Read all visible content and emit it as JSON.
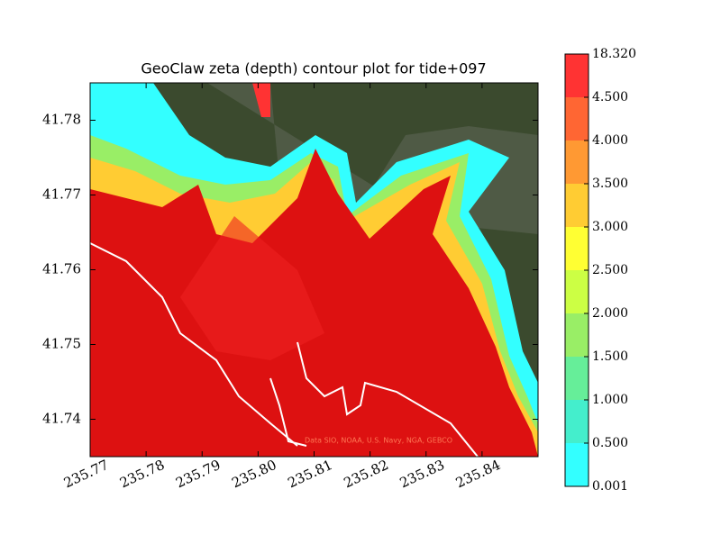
{
  "chart_data": {
    "type": "contour",
    "title": "GeoClaw zeta (depth) contour plot for tide+097",
    "attribution": "Data SIO, NOAA, U.S. Navy, NGA, GEBCO",
    "xlim": [
      235.77,
      235.85
    ],
    "xticks": [
      235.77,
      235.78,
      235.79,
      {
        "value": 235.8,
        "label": "235.80"
      },
      235.81,
      235.82,
      235.83,
      235.84
    ],
    "ylim": [
      41.735,
      41.785
    ],
    "yticks": [
      41.74,
      41.75,
      41.76,
      41.77,
      41.78
    ],
    "colorbar": {
      "levels": [
        0.001,
        {
          "value": 0.5,
          "label": "0.500"
        },
        {
          "value": 1,
          "label": "1.000"
        },
        {
          "value": 1.5,
          "label": "1.500"
        },
        {
          "value": 2,
          "label": "2.000"
        },
        {
          "value": 2.5,
          "label": "2.500"
        },
        {
          "value": 3,
          "label": "3.000"
        },
        {
          "value": 3.5,
          "label": "3.500"
        },
        {
          "value": 4,
          "label": "4.000"
        },
        {
          "value": 4.5,
          "label": "4.500"
        },
        {
          "value": 18.32,
          "label": "18.320"
        }
      ],
      "colors": [
        "#33ffff",
        "#44eecc",
        "#66ee99",
        "#99ee66",
        "#ccff44",
        "#ffff33",
        "#ffcc33",
        "#ff9933",
        "#ff6633",
        "#ff3333"
      ]
    }
  }
}
